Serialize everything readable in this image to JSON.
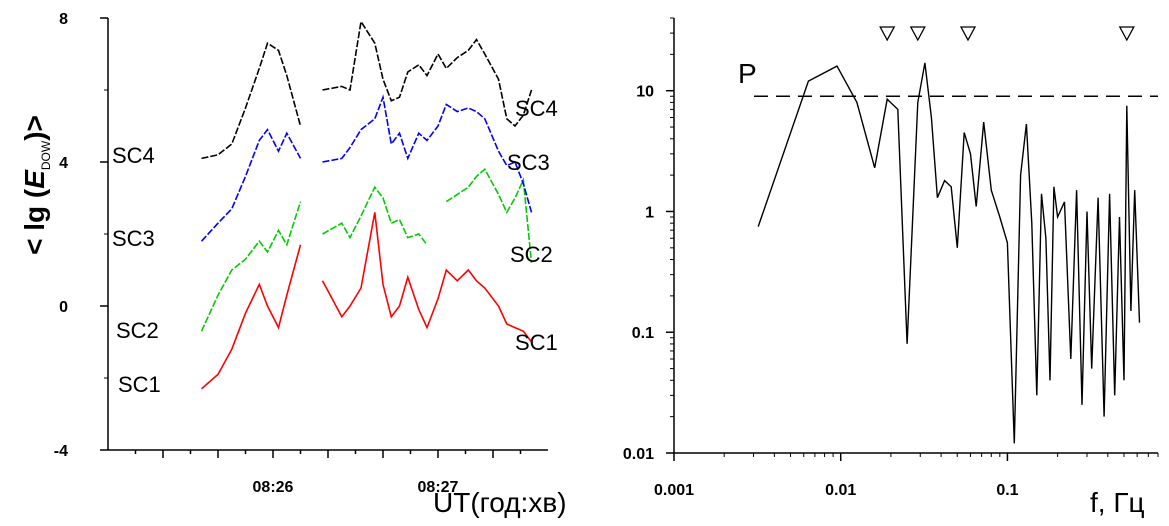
{
  "left_chart": {
    "ylabel_prefix": "< lg (",
    "ylabel_var": "E",
    "ylabel_sub": "DOW",
    "ylabel_suffix": ")>",
    "xlabel": "UT(год:хв)",
    "ytick_labels": [
      "8",
      "4",
      "0",
      "-4"
    ],
    "xtick_labels": [
      "08:26",
      "08:27"
    ]
  },
  "right_chart": {
    "ylabel": "P",
    "xlabel": "f, Гц",
    "ytick_labels": [
      "10",
      "1",
      "0.1",
      "0.01"
    ],
    "xtick_labels": [
      "0.001",
      "0.01",
      "0.1"
    ]
  },
  "chart_data": [
    {
      "type": "line",
      "xlabel": "UT(год:хв)",
      "ylabel": "< lg (E DOW)>",
      "ylim": [
        -4,
        8
      ],
      "xlim_seconds_after_0825": [
        0,
        160
      ],
      "x_unit": "seconds after 08:25:00",
      "yticks": [
        8,
        4,
        0,
        -4
      ],
      "xticks": [
        {
          "label": "08:26",
          "value": 60
        },
        {
          "label": "08:27",
          "value": 120
        }
      ],
      "series": [
        {
          "name": "SC1",
          "color": "#ff0000",
          "x": [
            34,
            40,
            45,
            50,
            55,
            58,
            62,
            65,
            70,
            73,
            78,
            85,
            88,
            92,
            97,
            100,
            103,
            106,
            109,
            113,
            116,
            120,
            123,
            127,
            131,
            134,
            137,
            142,
            145,
            148,
            151,
            154
          ],
          "y": [
            -2.3,
            -1.9,
            -1.2,
            -0.2,
            0.6,
            0.0,
            -0.6,
            0.3,
            1.7,
            null,
            0.7,
            -0.3,
            0.0,
            0.5,
            2.6,
            0.6,
            -0.3,
            0.0,
            0.8,
            -0.1,
            -0.6,
            0.2,
            1.0,
            0.7,
            1.0,
            0.7,
            0.5,
            0.0,
            -0.5,
            -0.6,
            -0.7,
            -1.0
          ]
        },
        {
          "name": "SC2",
          "color": "#00cc00",
          "x": [
            34,
            40,
            45,
            50,
            55,
            58,
            62,
            65,
            70,
            73,
            78,
            85,
            88,
            92,
            97,
            100,
            103,
            106,
            109,
            113,
            116,
            120,
            123,
            127,
            131,
            134,
            137,
            142,
            145,
            148,
            151,
            154
          ],
          "y": [
            -0.7,
            0.3,
            1.0,
            1.3,
            1.8,
            1.5,
            2.1,
            1.7,
            2.9,
            null,
            2.0,
            2.3,
            1.9,
            2.5,
            3.3,
            3.0,
            2.3,
            2.4,
            1.9,
            2.0,
            1.7,
            null,
            2.9,
            3.1,
            3.3,
            3.6,
            3.8,
            3.1,
            2.6,
            3.0,
            3.5,
            1.2
          ]
        },
        {
          "name": "SC3",
          "color": "#0000ff",
          "x": [
            34,
            40,
            45,
            50,
            55,
            58,
            62,
            65,
            70,
            73,
            78,
            85,
            88,
            92,
            97,
            100,
            103,
            106,
            109,
            113,
            116,
            120,
            123,
            127,
            131,
            134,
            137,
            142,
            145,
            148,
            151,
            154
          ],
          "y": [
            1.8,
            2.3,
            2.7,
            3.6,
            4.6,
            4.9,
            4.3,
            4.8,
            4.1,
            null,
            4.0,
            4.1,
            4.4,
            4.9,
            5.2,
            5.8,
            4.5,
            4.8,
            4.1,
            4.8,
            4.6,
            5.0,
            5.6,
            5.4,
            5.5,
            5.4,
            5.2,
            4.3,
            3.9,
            4.0,
            3.4,
            2.6
          ]
        },
        {
          "name": "SC4",
          "color": "#000000",
          "x": [
            34,
            40,
            45,
            50,
            55,
            58,
            62,
            65,
            70,
            73,
            78,
            85,
            88,
            92,
            97,
            100,
            103,
            106,
            109,
            113,
            116,
            120,
            123,
            127,
            131,
            134,
            137,
            142,
            145,
            148,
            151,
            154
          ],
          "y": [
            4.1,
            4.2,
            4.5,
            5.5,
            6.6,
            7.3,
            7.1,
            6.4,
            5.0,
            null,
            6.0,
            6.1,
            6.0,
            7.9,
            7.3,
            6.3,
            5.7,
            5.8,
            6.5,
            6.7,
            6.4,
            7.0,
            6.6,
            6.9,
            7.1,
            7.4,
            7.0,
            6.3,
            5.2,
            5.0,
            5.3,
            6.0
          ]
        }
      ],
      "annotations_left": [
        "SC4",
        "SC3",
        "SC2",
        "SC1"
      ],
      "annotations_right": [
        "SC4",
        "SC3",
        "SC2",
        "SC1"
      ]
    },
    {
      "type": "line",
      "xlabel": "f, Гц",
      "ylabel": "P",
      "x_scale": "log",
      "y_scale": "log",
      "xlim": [
        0.001,
        0.8
      ],
      "ylim": [
        0.01,
        40
      ],
      "xticks": [
        0.001,
        0.01,
        0.1
      ],
      "yticks": [
        10,
        1,
        0.1,
        0.01
      ],
      "threshold": 9,
      "peak_markers_f": [
        0.019,
        0.029,
        0.058,
        0.52
      ],
      "series": [
        {
          "name": "",
          "color": "#000000",
          "x": [
            0.0032,
            0.0064,
            0.0095,
            0.0125,
            0.016,
            0.019,
            0.022,
            0.025,
            0.029,
            0.032,
            0.035,
            0.038,
            0.042,
            0.046,
            0.05,
            0.055,
            0.06,
            0.065,
            0.072,
            0.08,
            0.09,
            0.1,
            0.11,
            0.12,
            0.13,
            0.14,
            0.15,
            0.16,
            0.17,
            0.18,
            0.19,
            0.2,
            0.22,
            0.24,
            0.26,
            0.28,
            0.3,
            0.32,
            0.35,
            0.38,
            0.41,
            0.44,
            0.47,
            0.5,
            0.52,
            0.55,
            0.58,
            0.62
          ],
          "y": [
            0.75,
            12.0,
            16.0,
            8.0,
            2.3,
            8.5,
            7.0,
            0.08,
            8.0,
            17.0,
            6.0,
            1.3,
            1.8,
            1.6,
            0.5,
            4.5,
            3.0,
            1.1,
            5.5,
            1.5,
            0.9,
            0.55,
            0.012,
            2.0,
            5.3,
            0.8,
            0.03,
            1.4,
            0.6,
            0.04,
            1.6,
            0.9,
            1.2,
            0.06,
            1.5,
            0.025,
            1.0,
            0.05,
            1.3,
            0.02,
            1.4,
            0.03,
            0.9,
            0.04,
            7.5,
            0.15,
            1.5,
            0.12
          ]
        }
      ]
    }
  ]
}
